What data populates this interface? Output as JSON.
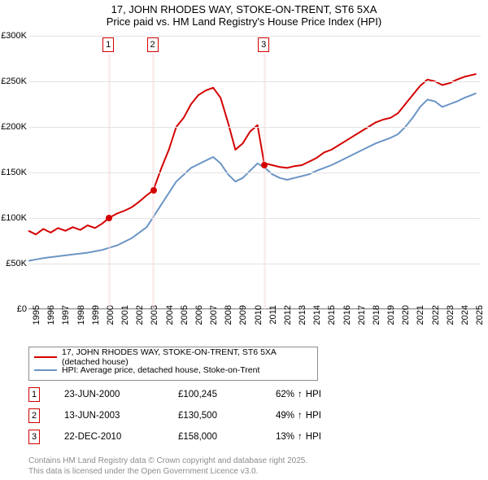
{
  "title1": "17, JOHN RHODES WAY, STOKE-ON-TRENT, ST6 5XA",
  "title2": "Price paid vs. HM Land Registry's House Price Index (HPI)",
  "chart": {
    "type": "line",
    "years": [
      1995,
      1996,
      1997,
      1998,
      1999,
      2000,
      2001,
      2002,
      2003,
      2004,
      2005,
      2006,
      2007,
      2008,
      2009,
      2010,
      2011,
      2012,
      2013,
      2014,
      2015,
      2016,
      2017,
      2018,
      2019,
      2020,
      2021,
      2022,
      2023,
      2024,
      2025
    ],
    "y_ticks": [
      0,
      50000,
      100000,
      150000,
      200000,
      250000,
      300000
    ],
    "y_tick_labels": [
      "£0",
      "£50K",
      "£100K",
      "£150K",
      "£200K",
      "£250K",
      "£300K"
    ],
    "ylim": [
      0,
      300000
    ],
    "xlim": [
      1995,
      2025.6
    ],
    "background_color": "#ffffff",
    "grid_color": "#e3e3e3",
    "axis_color": "#8d8d8d",
    "label_fontsize": 11,
    "title_fontsize": 13,
    "series": {
      "property": {
        "label": "17, JOHN RHODES WAY, STOKE-ON-TRENT, ST6 5XA (detached house)",
        "color": "#d40000",
        "width": 2,
        "data": [
          [
            1995,
            86000
          ],
          [
            1995.5,
            82000
          ],
          [
            1996,
            88000
          ],
          [
            1996.5,
            84000
          ],
          [
            1997,
            89000
          ],
          [
            1997.5,
            86000
          ],
          [
            1998,
            90000
          ],
          [
            1998.5,
            87000
          ],
          [
            1999,
            92000
          ],
          [
            1999.5,
            89000
          ],
          [
            2000,
            94000
          ],
          [
            2000.46,
            100245
          ],
          [
            2001,
            105000
          ],
          [
            2001.5,
            108000
          ],
          [
            2002,
            112000
          ],
          [
            2002.5,
            118000
          ],
          [
            2003,
            125000
          ],
          [
            2003.45,
            130500
          ],
          [
            2004,
            155000
          ],
          [
            2004.5,
            175000
          ],
          [
            2005,
            200000
          ],
          [
            2005.5,
            210000
          ],
          [
            2006,
            225000
          ],
          [
            2006.5,
            235000
          ],
          [
            2007,
            240000
          ],
          [
            2007.5,
            243000
          ],
          [
            2008,
            232000
          ],
          [
            2008.5,
            205000
          ],
          [
            2009,
            175000
          ],
          [
            2009.5,
            182000
          ],
          [
            2010,
            195000
          ],
          [
            2010.5,
            202000
          ],
          [
            2010.97,
            158000
          ],
          [
            2011.02,
            160000
          ],
          [
            2011.5,
            158000
          ],
          [
            2012,
            156000
          ],
          [
            2012.5,
            155000
          ],
          [
            2013,
            157000
          ],
          [
            2013.5,
            158000
          ],
          [
            2014,
            162000
          ],
          [
            2014.5,
            166000
          ],
          [
            2015,
            172000
          ],
          [
            2015.5,
            175000
          ],
          [
            2016,
            180000
          ],
          [
            2016.5,
            185000
          ],
          [
            2017,
            190000
          ],
          [
            2017.5,
            195000
          ],
          [
            2018,
            200000
          ],
          [
            2018.5,
            205000
          ],
          [
            2019,
            208000
          ],
          [
            2019.5,
            210000
          ],
          [
            2020,
            215000
          ],
          [
            2020.5,
            225000
          ],
          [
            2021,
            235000
          ],
          [
            2021.5,
            245000
          ],
          [
            2022,
            252000
          ],
          [
            2022.5,
            250000
          ],
          [
            2023,
            246000
          ],
          [
            2023.5,
            248000
          ],
          [
            2024,
            252000
          ],
          [
            2024.5,
            255000
          ],
          [
            2025,
            257000
          ],
          [
            2025.3,
            258000
          ]
        ]
      },
      "hpi": {
        "label": "HPI: Average price, detached house, Stoke-on-Trent",
        "color": "#6b95c5",
        "width": 2,
        "data": [
          [
            1995,
            53000
          ],
          [
            1996,
            56000
          ],
          [
            1997,
            58000
          ],
          [
            1998,
            60000
          ],
          [
            1999,
            62000
          ],
          [
            2000,
            65000
          ],
          [
            2001,
            70000
          ],
          [
            2002,
            78000
          ],
          [
            2003,
            90000
          ],
          [
            2004,
            115000
          ],
          [
            2005,
            140000
          ],
          [
            2006,
            155000
          ],
          [
            2007,
            163000
          ],
          [
            2007.5,
            167000
          ],
          [
            2008,
            160000
          ],
          [
            2008.5,
            148000
          ],
          [
            2009,
            140000
          ],
          [
            2009.5,
            144000
          ],
          [
            2010,
            152000
          ],
          [
            2010.5,
            160000
          ],
          [
            2011,
            155000
          ],
          [
            2011.5,
            148000
          ],
          [
            2012,
            144000
          ],
          [
            2012.5,
            142000
          ],
          [
            2013,
            144000
          ],
          [
            2013.5,
            146000
          ],
          [
            2014,
            148000
          ],
          [
            2014.5,
            152000
          ],
          [
            2015,
            155000
          ],
          [
            2015.5,
            158000
          ],
          [
            2016,
            162000
          ],
          [
            2016.5,
            166000
          ],
          [
            2017,
            170000
          ],
          [
            2017.5,
            174000
          ],
          [
            2018,
            178000
          ],
          [
            2018.5,
            182000
          ],
          [
            2019,
            185000
          ],
          [
            2019.5,
            188000
          ],
          [
            2020,
            192000
          ],
          [
            2020.5,
            200000
          ],
          [
            2021,
            210000
          ],
          [
            2021.5,
            222000
          ],
          [
            2022,
            230000
          ],
          [
            2022.5,
            228000
          ],
          [
            2023,
            222000
          ],
          [
            2023.5,
            225000
          ],
          [
            2024,
            228000
          ],
          [
            2024.5,
            232000
          ],
          [
            2025,
            235000
          ],
          [
            2025.3,
            237000
          ]
        ]
      }
    },
    "markers": [
      {
        "n": "1",
        "year": 2000.46,
        "price": 100245,
        "color": "#d40000",
        "bandColor": "#f6dddd"
      },
      {
        "n": "2",
        "year": 2003.45,
        "price": 130500,
        "color": "#d40000",
        "bandColor": "#f6dddd"
      },
      {
        "n": "3",
        "year": 2010.97,
        "price": 158000,
        "color": "#d40000",
        "bandColor": "#f6dddd"
      }
    ]
  },
  "legend": [
    {
      "color": "#d40000",
      "label": "17, JOHN RHODES WAY, STOKE-ON-TRENT, ST6 5XA (detached house)"
    },
    {
      "color": "#6b95c5",
      "label": "HPI: Average price, detached house, Stoke-on-Trent"
    }
  ],
  "events": [
    {
      "n": "1",
      "color": "#d40000",
      "date": "23-JUN-2000",
      "price": "£100,245",
      "pct": "62%",
      "suffix": "HPI"
    },
    {
      "n": "2",
      "color": "#d40000",
      "date": "13-JUN-2003",
      "price": "£130,500",
      "pct": "49%",
      "suffix": "HPI"
    },
    {
      "n": "3",
      "color": "#d40000",
      "date": "22-DEC-2010",
      "price": "£158,000",
      "pct": "13%",
      "suffix": "HPI"
    }
  ],
  "footer1": "Contains HM Land Registry data © Crown copyright and database right 2025.",
  "footer2": "This data is licensed under the Open Government Licence v3.0."
}
